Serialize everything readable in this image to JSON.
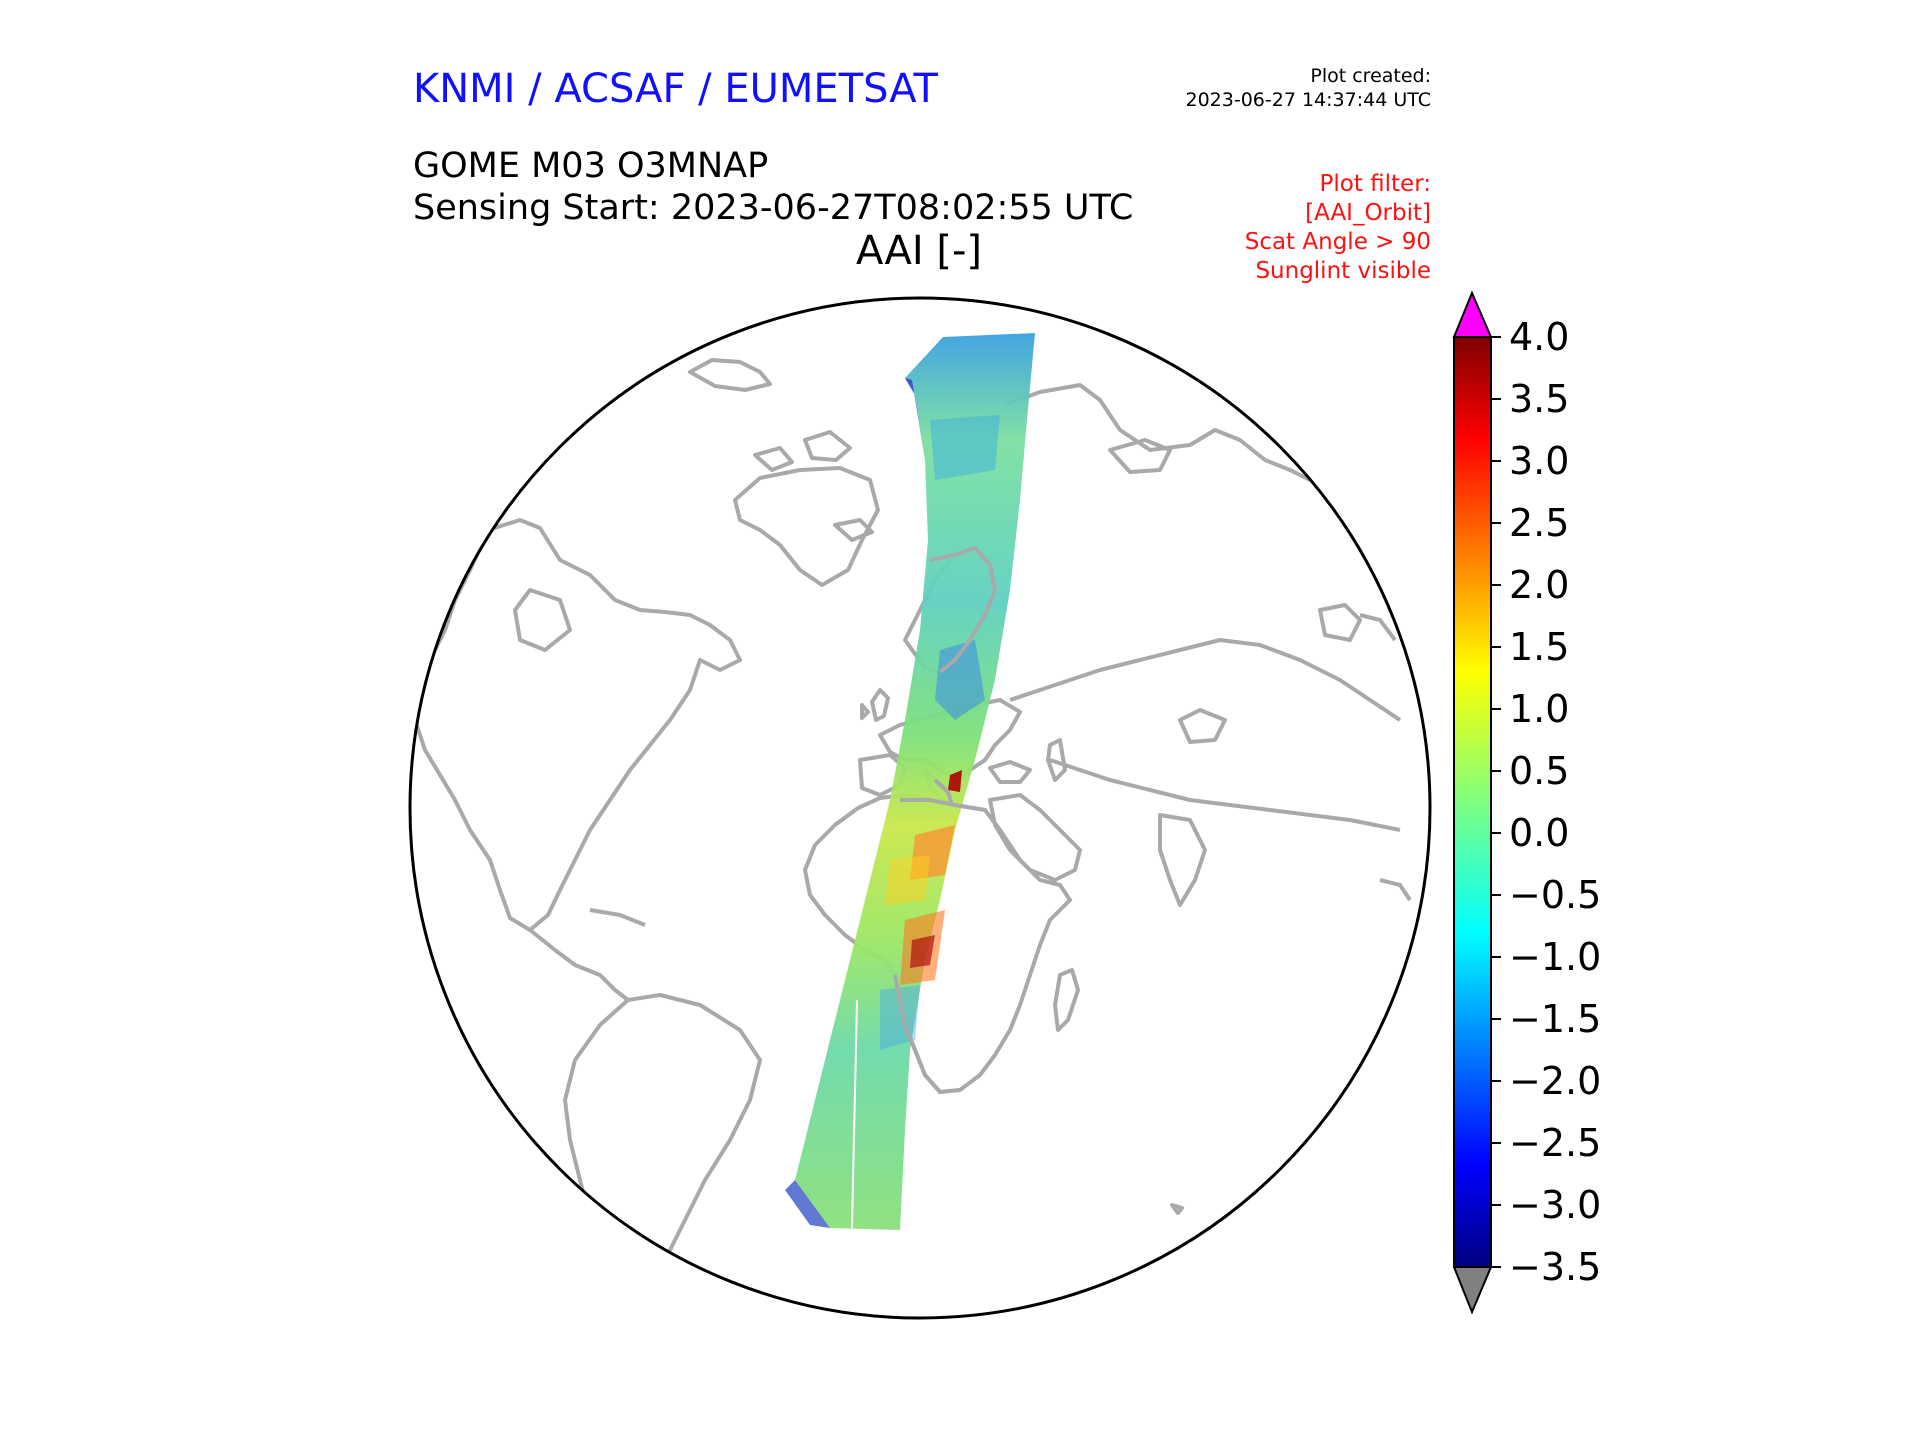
{
  "header": {
    "organization": "KNMI / ACSAF / EUMETSAT",
    "created_label": "Plot created:",
    "created_time": "2023-06-27 14:37:44 UTC",
    "product": "GOME M03 O3MNAP",
    "sensing_start": "Sensing Start: 2023-06-27T08:02:55 UTC",
    "variable": "AAI [-]"
  },
  "filter": {
    "lines": [
      "Plot filter:",
      "[AAI_Orbit]",
      "Scat Angle > 90",
      "Sunglint visible"
    ]
  },
  "colorbar": {
    "min": -3.5,
    "max": 4.0,
    "ticks": [
      "4.0",
      "3.5",
      "3.0",
      "2.5",
      "2.0",
      "1.5",
      "1.0",
      "0.5",
      "0.0",
      "−0.5",
      "−1.0",
      "−1.5",
      "−2.0",
      "−2.5",
      "−3.0",
      "−3.5"
    ],
    "over_color": "#ff00ff",
    "under_color": "#808080",
    "colormap": "jet"
  },
  "map": {
    "projection": "orthographic",
    "coast_color": "#a9a9a9",
    "swath": "GOME-2 AAI orbit swath from Scandinavia over Africa into the South Atlantic"
  }
}
